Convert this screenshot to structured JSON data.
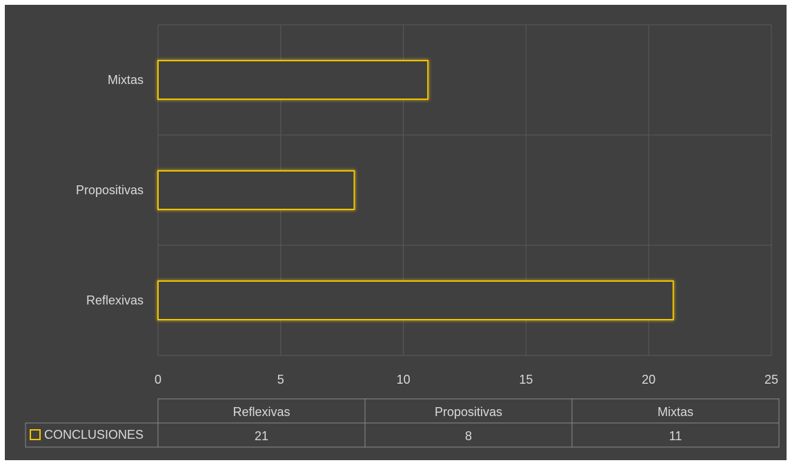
{
  "chart_data": {
    "type": "bar",
    "orientation": "horizontal",
    "categories": [
      "Reflexivas",
      "Propositivas",
      "Mixtas"
    ],
    "series": [
      {
        "name": "CONCLUSIONES",
        "values": [
          21,
          8,
          11
        ]
      }
    ],
    "xlim": [
      0,
      25
    ],
    "xticks": [
      0,
      5,
      10,
      15,
      20,
      25
    ],
    "grid": true,
    "legend": "bottom-left data table",
    "data_table": {
      "headers": [
        "Reflexivas",
        "Propositivas",
        "Mixtas"
      ],
      "row_label": "CONCLUSIONES",
      "values": [
        21,
        8,
        11
      ]
    }
  },
  "colors": {
    "page_background": "#ffffff",
    "chart_background": "#404040",
    "bar_stroke": "#f2c400",
    "bar_fill": "#404040",
    "text": "#d9d9d9",
    "grid": "#5a5a5a",
    "table_line": "#8a8a8a"
  }
}
